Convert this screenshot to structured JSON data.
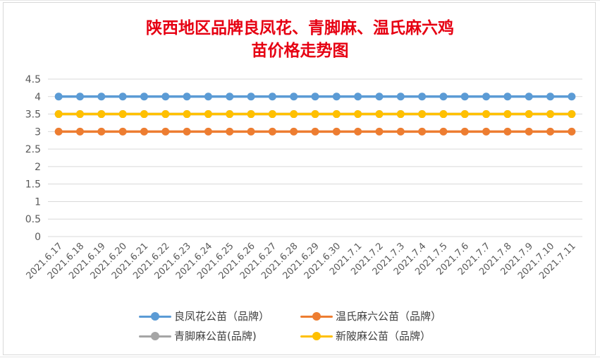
{
  "chart_data": {
    "type": "line",
    "title_line1": "陕西地区品牌良凤花、青脚麻、温氏麻六鸡",
    "title_line2": "苗价格走势图",
    "categories": [
      "2021.6.17",
      "2021.6.18",
      "2021.6.19",
      "2021.6.20",
      "2021.6.21",
      "2021.6.22",
      "2021.6.23",
      "2021.6.24",
      "2021.6.25",
      "2021.6.26",
      "2021.6.27",
      "2021.6.28",
      "2021.6.29",
      "2021.6.30",
      "2021.7.1",
      "2021.7.2",
      "2021.7.3",
      "2021.7.4",
      "2021.7.5",
      "2021.7.6",
      "2021.7.7",
      "2021.7.8",
      "2021.7.9",
      "2021.7.10",
      "2021.7.11"
    ],
    "y_ticks": [
      "0",
      "0.5",
      "1",
      "1.5",
      "2",
      "2.5",
      "3",
      "3.5",
      "4",
      "4.5"
    ],
    "ylim": [
      0,
      4.5
    ],
    "grid": true,
    "legend_position": "bottom",
    "series": [
      {
        "name": "良凤花公苗（品牌）",
        "color": "#5b9bd5",
        "values": [
          4,
          4,
          4,
          4,
          4,
          4,
          4,
          4,
          4,
          4,
          4,
          4,
          4,
          4,
          4,
          4,
          4,
          4,
          4,
          4,
          4,
          4,
          4,
          4,
          4
        ]
      },
      {
        "name": "温氏麻六公苗（品牌）",
        "color": "#ed7d31",
        "values": [
          3,
          3,
          3,
          3,
          3,
          3,
          3,
          3,
          3,
          3,
          3,
          3,
          3,
          3,
          3,
          3,
          3,
          3,
          3,
          3,
          3,
          3,
          3,
          3,
          3
        ]
      },
      {
        "name": "青脚麻公苗(品牌)",
        "color": "#a5a5a5",
        "values": [
          3.5,
          3.5,
          3.5,
          3.5,
          3.5,
          3.5,
          3.5,
          3.5,
          3.5,
          3.5,
          3.5,
          3.5,
          3.5,
          3.5,
          3.5,
          3.5,
          3.5,
          3.5,
          3.5,
          3.5,
          3.5,
          3.5,
          3.5,
          3.5,
          3.5
        ]
      },
      {
        "name": "新陂麻公苗（品牌）",
        "color": "#ffc000",
        "values": [
          3.5,
          3.5,
          3.5,
          3.5,
          3.5,
          3.5,
          3.5,
          3.5,
          3.5,
          3.5,
          3.5,
          3.5,
          3.5,
          3.5,
          3.5,
          3.5,
          3.5,
          3.5,
          3.5,
          3.5,
          3.5,
          3.5,
          3.5,
          3.5,
          3.5
        ]
      }
    ]
  }
}
